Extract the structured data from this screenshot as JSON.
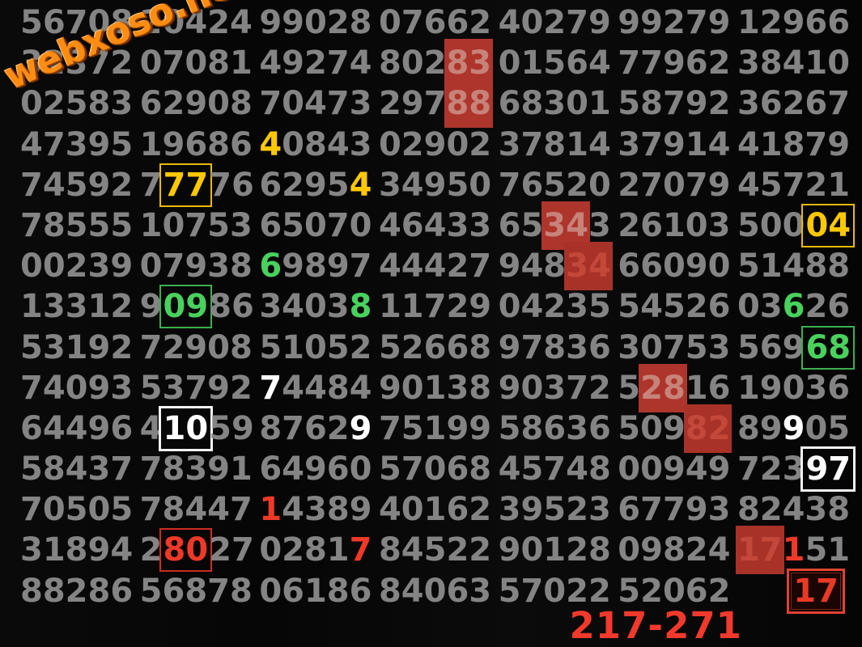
{
  "watermark": {
    "text": "webxoso.net",
    "color": "#ff8c12"
  },
  "footer": {
    "annotation": "217-271",
    "color": "#f1392c"
  },
  "legend_colors": {
    "normal_digit": "#848484",
    "yellow_highlight": "#ffc803",
    "green_highlight": "#48d15c",
    "white_highlight": "#ffffff",
    "red_highlight": "#ee3828",
    "red_cell_background": "#ae352b",
    "background": "#070707"
  },
  "grid": {
    "rows": [
      {
        "cells": [
          {
            "t": "56708"
          },
          {
            "t": "20424"
          },
          {
            "t": "99028"
          },
          {
            "t": "07662"
          },
          {
            "t": "40279"
          },
          {
            "t": "99279"
          },
          {
            "t": "12966"
          }
        ]
      },
      {
        "cells": [
          {
            "t": "32372"
          },
          {
            "t": "07081"
          },
          {
            "t": "49274"
          },
          {
            "t": "80283",
            "m": [
              {
                "s": 3,
                "e": 5,
                "c": "hbg"
              }
            ]
          },
          {
            "t": "01564"
          },
          {
            "t": "77962"
          },
          {
            "t": "38410"
          }
        ]
      },
      {
        "cells": [
          {
            "t": "02583"
          },
          {
            "t": "62908"
          },
          {
            "t": "70473"
          },
          {
            "t": "29788",
            "m": [
              {
                "s": 3,
                "e": 5,
                "c": "hbg"
              }
            ]
          },
          {
            "t": "68301"
          },
          {
            "t": "58792"
          },
          {
            "t": "36267"
          }
        ]
      },
      {
        "cells": [
          {
            "t": "47395"
          },
          {
            "t": "19686"
          },
          {
            "t": "40843",
            "m": [
              {
                "s": 0,
                "e": 1,
                "c": "y"
              }
            ]
          },
          {
            "t": "02902"
          },
          {
            "t": "37814"
          },
          {
            "t": "37914"
          },
          {
            "t": "41879"
          }
        ]
      },
      {
        "cells": [
          {
            "t": "74592"
          },
          {
            "t": "77776",
            "m": [
              {
                "s": 1,
                "e": 3,
                "c": "yb"
              }
            ]
          },
          {
            "t": "62954",
            "m": [
              {
                "s": 4,
                "e": 5,
                "c": "y"
              }
            ]
          },
          {
            "t": "34950"
          },
          {
            "t": "76520"
          },
          {
            "t": "27079"
          },
          {
            "t": "45721"
          }
        ]
      },
      {
        "cells": [
          {
            "t": "78555"
          },
          {
            "t": "10753"
          },
          {
            "t": "65070"
          },
          {
            "t": "46433"
          },
          {
            "t": "65343",
            "m": [
              {
                "s": 2,
                "e": 4,
                "c": "hbg"
              }
            ]
          },
          {
            "t": "26103"
          },
          {
            "t": "50004",
            "m": [
              {
                "s": 3,
                "e": 5,
                "c": "yb"
              }
            ]
          }
        ]
      },
      {
        "cells": [
          {
            "t": "00239"
          },
          {
            "t": "07938"
          },
          {
            "t": "69897",
            "m": [
              {
                "s": 0,
                "e": 1,
                "c": "g"
              }
            ]
          },
          {
            "t": "44427"
          },
          {
            "t": "94834",
            "m": [
              {
                "s": 3,
                "e": 5,
                "c": "hbgr"
              }
            ]
          },
          {
            "t": "66090"
          },
          {
            "t": "51488"
          }
        ]
      },
      {
        "cells": [
          {
            "t": "13312"
          },
          {
            "t": "90986",
            "m": [
              {
                "s": 1,
                "e": 3,
                "c": "gb"
              }
            ]
          },
          {
            "t": "34038",
            "m": [
              {
                "s": 4,
                "e": 5,
                "c": "g"
              }
            ]
          },
          {
            "t": "11729"
          },
          {
            "t": "04235"
          },
          {
            "t": "54526"
          },
          {
            "t": "03626",
            "m": [
              {
                "s": 2,
                "e": 3,
                "c": "g"
              }
            ]
          }
        ]
      },
      {
        "cells": [
          {
            "t": "53192"
          },
          {
            "t": "72908"
          },
          {
            "t": "51052"
          },
          {
            "t": "52668"
          },
          {
            "t": "97836"
          },
          {
            "t": "30753"
          },
          {
            "t": "56968",
            "m": [
              {
                "s": 3,
                "e": 5,
                "c": "gb"
              }
            ]
          }
        ]
      },
      {
        "cells": [
          {
            "t": "74093"
          },
          {
            "t": "53792"
          },
          {
            "t": "74484",
            "m": [
              {
                "s": 0,
                "e": 1,
                "c": "w"
              }
            ]
          },
          {
            "t": "90138"
          },
          {
            "t": "90372"
          },
          {
            "t": "52816",
            "m": [
              {
                "s": 1,
                "e": 3,
                "c": "hbg"
              }
            ]
          },
          {
            "t": "19036"
          }
        ]
      },
      {
        "cells": [
          {
            "t": "64496"
          },
          {
            "t": "41059",
            "m": [
              {
                "s": 1,
                "e": 3,
                "c": "wb"
              }
            ]
          },
          {
            "t": "87629",
            "m": [
              {
                "s": 4,
                "e": 5,
                "c": "w"
              }
            ]
          },
          {
            "t": "75199"
          },
          {
            "t": "58636"
          },
          {
            "t": "50982",
            "m": [
              {
                "s": 3,
                "e": 5,
                "c": "hbgr"
              }
            ]
          },
          {
            "t": "89905",
            "m": [
              {
                "s": 2,
                "e": 3,
                "c": "w"
              }
            ]
          }
        ]
      },
      {
        "cells": [
          {
            "t": "58437"
          },
          {
            "t": "78391"
          },
          {
            "t": "64960"
          },
          {
            "t": "57068"
          },
          {
            "t": "45748"
          },
          {
            "t": "00949"
          },
          {
            "t": "72397",
            "m": [
              {
                "s": 3,
                "e": 5,
                "c": "wb"
              }
            ]
          }
        ]
      },
      {
        "cells": [
          {
            "t": "70505"
          },
          {
            "t": "78447"
          },
          {
            "t": "14389",
            "m": [
              {
                "s": 0,
                "e": 1,
                "c": "r"
              }
            ]
          },
          {
            "t": "40162"
          },
          {
            "t": "39523"
          },
          {
            "t": "67793"
          },
          {
            "t": "82438"
          }
        ]
      },
      {
        "cells": [
          {
            "t": "31894"
          },
          {
            "t": "28027",
            "m": [
              {
                "s": 1,
                "e": 3,
                "c": "rb"
              }
            ]
          },
          {
            "t": "02817",
            "m": [
              {
                "s": 4,
                "e": 5,
                "c": "r"
              }
            ]
          },
          {
            "t": "84522"
          },
          {
            "t": "90128"
          },
          {
            "t": "09824"
          },
          {
            "t": "17151",
            "m": [
              {
                "s": 0,
                "e": 2,
                "c": "hbgr"
              },
              {
                "s": 2,
                "e": 3,
                "c": "r"
              }
            ]
          }
        ]
      },
      {
        "cells": [
          {
            "t": "88286"
          },
          {
            "t": "56878"
          },
          {
            "t": "06186"
          },
          {
            "t": "84063"
          },
          {
            "t": "57022"
          },
          {
            "t": "52062"
          },
          {
            "t": "17",
            "align": "r",
            "m": [
              {
                "s": 0,
                "e": 2,
                "c": "rb2"
              }
            ]
          }
        ]
      }
    ]
  }
}
